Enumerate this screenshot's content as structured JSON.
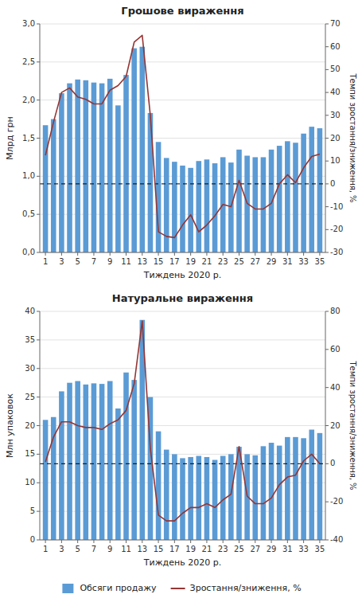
{
  "chart_data": [
    {
      "type": "bar",
      "title": "Грошове вираження",
      "x_label": "Тиждень 2020 р.",
      "y_label": "Млрд грн",
      "y2_label": "Темпи зростання/зниження, %",
      "x": [
        1,
        2,
        3,
        4,
        5,
        6,
        7,
        8,
        9,
        10,
        11,
        12,
        13,
        14,
        15,
        16,
        17,
        18,
        19,
        20,
        21,
        22,
        23,
        24,
        25,
        26,
        27,
        28,
        29,
        30,
        31,
        32,
        33,
        34,
        35
      ],
      "xlim": [
        0.3,
        35.7
      ],
      "xticks": [
        1,
        3,
        5,
        7,
        9,
        11,
        13,
        15,
        17,
        19,
        21,
        23,
        25,
        27,
        29,
        31,
        33,
        35
      ],
      "ylim": [
        0.0,
        3.0
      ],
      "yticks": [
        {
          "value": 0.0,
          "label": "0,0"
        },
        {
          "value": 0.5,
          "label": "0,5"
        },
        {
          "value": 1.0,
          "label": "1,0"
        },
        {
          "value": 1.5,
          "label": "1,5"
        },
        {
          "value": 2.0,
          "label": "2,0"
        },
        {
          "value": 2.5,
          "label": "2,5"
        },
        {
          "value": 3.0,
          "label": "3,0"
        }
      ],
      "y2lim": [
        -30,
        70
      ],
      "y2ticks": [
        -30,
        -20,
        -10,
        0,
        10,
        20,
        30,
        40,
        50,
        60,
        70
      ],
      "grid": true,
      "y2_reference_line": 0,
      "series": [
        {
          "type": "bar",
          "color": "#5B9BD5",
          "values": [
            1.67,
            1.75,
            2.09,
            2.22,
            2.27,
            2.26,
            2.23,
            2.22,
            2.28,
            1.93,
            2.33,
            2.68,
            2.7,
            1.83,
            1.45,
            1.24,
            1.19,
            1.14,
            1.11,
            1.2,
            1.22,
            1.17,
            1.25,
            1.18,
            1.35,
            1.27,
            1.25,
            1.25,
            1.35,
            1.4,
            1.46,
            1.44,
            1.56,
            1.65,
            1.63
          ]
        },
        {
          "type": "line",
          "axis": "y2",
          "color": "#943634",
          "values": [
            12.5,
            27.0,
            40.0,
            42.0,
            38.0,
            37.0,
            35.0,
            35.0,
            41.0,
            43.0,
            47.0,
            62.0,
            65.0,
            30.0,
            -21.0,
            -23.0,
            -23.5,
            -18.0,
            -13.5,
            -21.0,
            -18.0,
            -14.0,
            -9.0,
            -10.0,
            1.5,
            -8.5,
            -11.0,
            -11.0,
            -8.5,
            0.0,
            4.0,
            0.5,
            7.0,
            12.0,
            13.0
          ]
        }
      ]
    },
    {
      "type": "bar",
      "title": "Натуральне вираження",
      "x_label": "Тиждень 2020 р.",
      "y_label": "Млн упаковок",
      "y2_label": "Темпи зростання/зниження, %",
      "x": [
        1,
        2,
        3,
        4,
        5,
        6,
        7,
        8,
        9,
        10,
        11,
        12,
        13,
        14,
        15,
        16,
        17,
        18,
        19,
        20,
        21,
        22,
        23,
        24,
        25,
        26,
        27,
        28,
        29,
        30,
        31,
        32,
        33,
        34,
        35
      ],
      "xlim": [
        0.3,
        35.7
      ],
      "xticks": [
        1,
        3,
        5,
        7,
        9,
        11,
        13,
        15,
        17,
        19,
        21,
        23,
        25,
        27,
        29,
        31,
        33,
        35
      ],
      "ylim": [
        0,
        40
      ],
      "yticks": [
        0,
        5,
        10,
        15,
        20,
        25,
        30,
        35,
        40
      ],
      "y2lim": [
        -40,
        80
      ],
      "y2ticks": [
        -40,
        -20,
        0,
        20,
        40,
        60,
        80
      ],
      "grid": true,
      "y2_reference_line": 0,
      "legend": "bottom",
      "series": [
        {
          "type": "bar",
          "name": "Обсяги продажу",
          "color": "#5B9BD5",
          "values": [
            21.0,
            21.5,
            26.0,
            27.5,
            27.8,
            27.2,
            27.4,
            27.3,
            27.8,
            23.0,
            29.3,
            28.0,
            38.5,
            25.0,
            19.0,
            15.8,
            15.0,
            14.3,
            14.5,
            14.7,
            14.5,
            14.0,
            14.7,
            15.0,
            16.3,
            15.0,
            14.8,
            16.4,
            17.0,
            16.5,
            18.0,
            18.0,
            17.8,
            19.3,
            18.7
          ]
        },
        {
          "type": "line",
          "name": "Зростання/зниження, %",
          "axis": "y2",
          "color": "#943634",
          "values": [
            1.0,
            14.0,
            22.0,
            22.0,
            20.0,
            19.0,
            19.0,
            18.0,
            21.0,
            23.0,
            28.0,
            42.0,
            75.0,
            8.0,
            -27.0,
            -30.0,
            -30.0,
            -26.0,
            -23.0,
            -23.0,
            -21.0,
            -23.0,
            -19.0,
            -16.0,
            9.0,
            -17.0,
            -21.0,
            -21.0,
            -18.0,
            -11.0,
            -7.0,
            -6.0,
            1.5,
            5.0,
            0.0
          ]
        }
      ]
    }
  ]
}
